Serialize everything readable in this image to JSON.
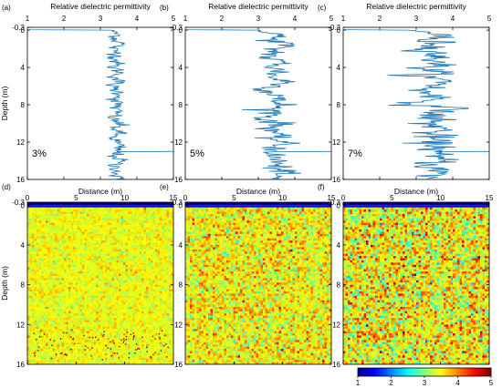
{
  "colors": {
    "profile_line": "#1f77b4",
    "axis": "#000000",
    "colormap": [
      "#00008f",
      "#0000ff",
      "#0080ff",
      "#00ffff",
      "#80ff80",
      "#ffff00",
      "#ff8000",
      "#ff0000",
      "#800000"
    ]
  },
  "chart_data": [
    {
      "panel": "(a)",
      "type": "line",
      "title": "Relative dielectric permittivity",
      "ylabel": "Depth (m)",
      "xlim": [
        1,
        5
      ],
      "ylim": [
        -0.3,
        16
      ],
      "x_ticks": [
        "1",
        "2",
        "3",
        "4",
        "5"
      ],
      "y_ticks": [
        "-0.3",
        "0",
        "4",
        "8",
        "12",
        "16"
      ],
      "annotation": "3%",
      "series": [
        {
          "mean": 3.45,
          "amplitude": 0.12,
          "depth": [
            -0.3,
            -0.05,
            0.0,
            0.5,
            1.0,
            1.5,
            2.0,
            2.5,
            3.0,
            3.5,
            4.0,
            4.5,
            5.0,
            5.5,
            6.0,
            6.5,
            7.0,
            7.5,
            8.0,
            8.5,
            9.0,
            9.5,
            10.0,
            10.5,
            11.0,
            11.5,
            12.0,
            12.5,
            12.98,
            13.0,
            13.02,
            13.5,
            14.0,
            14.5,
            15.0,
            15.5,
            16.0
          ],
          "permittivity": [
            1.0,
            1.0,
            3.3,
            3.5,
            3.4,
            3.6,
            3.3,
            3.5,
            3.4,
            3.45,
            3.35,
            3.55,
            3.4,
            3.5,
            3.3,
            3.45,
            3.6,
            3.35,
            3.5,
            3.4,
            3.45,
            3.3,
            3.55,
            3.4,
            3.5,
            3.35,
            3.45,
            3.5,
            3.45,
            5.0,
            3.45,
            3.4,
            3.55,
            3.35,
            3.5,
            3.4,
            3.45
          ]
        }
      ]
    },
    {
      "panel": "(b)",
      "type": "line",
      "title": "Relative dielectric permittivity",
      "xlim": [
        1,
        5
      ],
      "ylim": [
        -0.3,
        16
      ],
      "x_ticks": [
        "1",
        "2",
        "3",
        "4",
        "5"
      ],
      "y_ticks": [
        "-0.3",
        "0",
        "4",
        "8",
        "12",
        "16"
      ],
      "annotation": "5%",
      "series": [
        {
          "mean": 3.5,
          "amplitude": 0.22,
          "depth": [
            -0.3,
            -0.05,
            0.0,
            0.5,
            1.0,
            1.5,
            2.0,
            2.5,
            3.0,
            3.5,
            4.0,
            4.5,
            5.0,
            5.5,
            6.0,
            6.5,
            7.0,
            7.5,
            8.0,
            8.5,
            9.0,
            9.5,
            10.0,
            10.5,
            11.0,
            11.5,
            12.0,
            12.5,
            12.98,
            13.0,
            13.02,
            13.5,
            14.0,
            14.5,
            15.0,
            15.5,
            16.0
          ],
          "permittivity": [
            1.0,
            1.0,
            3.0,
            3.6,
            3.3,
            3.8,
            3.4,
            3.5,
            3.2,
            3.7,
            3.4,
            3.6,
            3.3,
            3.8,
            3.5,
            3.2,
            3.6,
            3.4,
            3.7,
            3.3,
            3.5,
            3.1,
            3.6,
            3.4,
            3.5,
            3.3,
            3.7,
            3.5,
            3.5,
            5.0,
            3.5,
            3.3,
            3.6,
            3.4,
            3.7,
            3.5,
            3.4
          ]
        }
      ]
    },
    {
      "panel": "(c)",
      "type": "line",
      "title": "Relative dielectric permittivity",
      "xlim": [
        1,
        5
      ],
      "ylim": [
        -0.3,
        16
      ],
      "x_ticks": [
        "1",
        "2",
        "3",
        "4",
        "5"
      ],
      "y_ticks": [
        "-0.3",
        "0",
        "4",
        "8",
        "12",
        "16"
      ],
      "annotation": "7%",
      "series": [
        {
          "mean": 3.5,
          "amplitude": 0.3,
          "depth": [
            -0.3,
            -0.05,
            0.0,
            0.5,
            1.0,
            1.5,
            2.0,
            2.5,
            3.0,
            3.5,
            4.0,
            4.5,
            5.0,
            5.5,
            6.0,
            6.5,
            7.0,
            7.5,
            8.0,
            8.5,
            9.0,
            9.5,
            10.0,
            10.5,
            11.0,
            11.5,
            12.0,
            12.5,
            12.98,
            13.0,
            13.02,
            13.5,
            14.0,
            14.5,
            15.0,
            15.5,
            16.0
          ],
          "permittivity": [
            1.0,
            1.0,
            2.8,
            3.9,
            3.2,
            3.7,
            3.3,
            3.6,
            3.4,
            3.8,
            3.3,
            3.5,
            3.1,
            3.9,
            3.6,
            3.0,
            3.7,
            3.4,
            2.9,
            4.2,
            3.3,
            3.6,
            3.2,
            3.8,
            3.4,
            3.5,
            3.3,
            3.7,
            3.5,
            5.0,
            3.5,
            3.4,
            3.8,
            3.3,
            3.6,
            3.5,
            3.4
          ]
        }
      ]
    },
    {
      "panel": "(d)",
      "type": "heatmap",
      "xlabel": "Distance (m)",
      "ylabel": "Depth (m)",
      "xlim": [
        0,
        15
      ],
      "ylim": [
        -0.3,
        16
      ],
      "x_ticks": [
        "0",
        "5",
        "10",
        "15"
      ],
      "y_ticks": [
        "-0.3",
        "0",
        "4",
        "8",
        "12",
        "16"
      ],
      "mean": 3.45,
      "spread": 0.12,
      "dark_points_depth_range": [
        12.5,
        15.5
      ]
    },
    {
      "panel": "(e)",
      "type": "heatmap",
      "xlabel": "Distance (m)",
      "xlim": [
        0,
        15
      ],
      "ylim": [
        -0.3,
        16
      ],
      "x_ticks": [
        "0",
        "5",
        "10",
        "15"
      ],
      "y_ticks": [
        "-0.3",
        "0",
        "4",
        "8",
        "12",
        "16"
      ],
      "mean": 3.5,
      "spread": 0.22
    },
    {
      "panel": "(f)",
      "type": "heatmap",
      "xlabel": "Distance (m)",
      "xlim": [
        0,
        15
      ],
      "ylim": [
        -0.3,
        16
      ],
      "x_ticks": [
        "0",
        "5",
        "10",
        "15"
      ],
      "y_ticks": [
        "-0.3",
        "0",
        "4",
        "8",
        "12",
        "16"
      ],
      "mean": 3.5,
      "spread": 0.3
    }
  ],
  "colorbar": {
    "range": [
      1,
      5
    ],
    "ticks": [
      "1",
      "2",
      "3",
      "4",
      "5"
    ]
  }
}
